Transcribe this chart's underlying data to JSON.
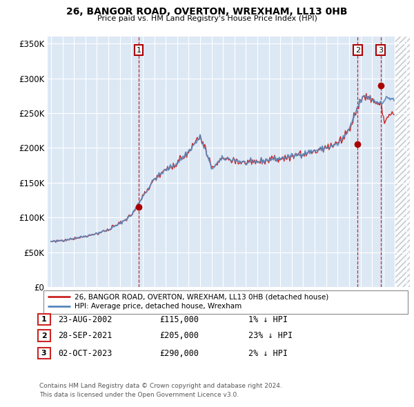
{
  "title": "26, BANGOR ROAD, OVERTON, WREXHAM, LL13 0HB",
  "subtitle": "Price paid vs. HM Land Registry's House Price Index (HPI)",
  "ylim": [
    0,
    360000
  ],
  "yticks": [
    0,
    50000,
    100000,
    150000,
    200000,
    250000,
    300000,
    350000
  ],
  "ytick_labels": [
    "£0",
    "£50K",
    "£100K",
    "£150K",
    "£200K",
    "£250K",
    "£300K",
    "£350K"
  ],
  "hpi_color": "#5588bb",
  "price_color": "#cc2222",
  "marker_color": "#aa0000",
  "bg_color": "#ffffff",
  "plot_bg_color": "#dde8f5",
  "grid_color": "#ffffff",
  "hatch_color": "#cccccc",
  "purchases": [
    {
      "date": "2002-08-23",
      "price": 115000,
      "label": "1"
    },
    {
      "date": "2021-09-28",
      "price": 205000,
      "label": "2"
    },
    {
      "date": "2023-10-02",
      "price": 290000,
      "label": "3"
    }
  ],
  "legend_line1": "26, BANGOR ROAD, OVERTON, WREXHAM, LL13 0HB (detached house)",
  "legend_line2": "HPI: Average price, detached house, Wrexham",
  "table_rows": [
    {
      "num": "1",
      "date": "23-AUG-2002",
      "price": "£115,000",
      "change": "1% ↓ HPI"
    },
    {
      "num": "2",
      "date": "28-SEP-2021",
      "price": "£205,000",
      "change": "23% ↓ HPI"
    },
    {
      "num": "3",
      "date": "02-OCT-2023",
      "price": "£290,000",
      "change": "2% ↓ HPI"
    }
  ],
  "footnote1": "Contains HM Land Registry data © Crown copyright and database right 2024.",
  "footnote2": "This data is licensed under the Open Government Licence v3.0."
}
